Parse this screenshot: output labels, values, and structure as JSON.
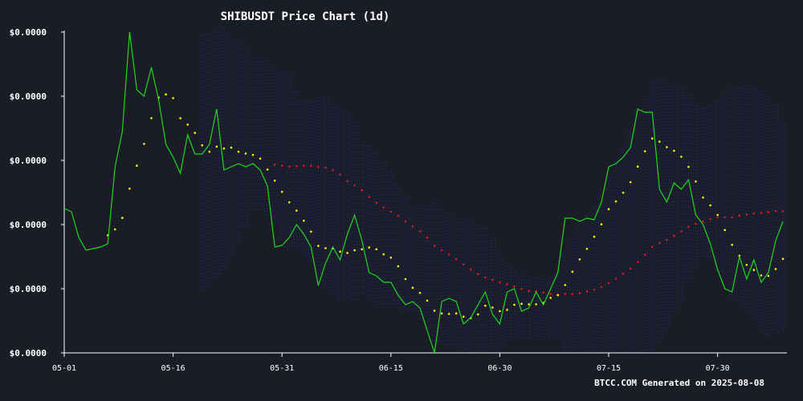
{
  "title": "SHIBUSDT Price Chart (1d)",
  "footer": "BTCC.COM Generated on 2025-08-08",
  "colors": {
    "background": "#1a1d26",
    "price_line": "#1ed81e",
    "fast_ma": "#ffff00",
    "slow_ma": "#e01818",
    "bollinger_band": "#2a2f8a",
    "axis": "#ffffff"
  },
  "chart_data": {
    "type": "line",
    "title": "SHIBUSDT Price Chart (1d)",
    "xlabel": "",
    "ylabel": "",
    "x_ticks": [
      "05-01",
      "05-16",
      "05-31",
      "06-15",
      "06-30",
      "07-15",
      "07-30"
    ],
    "x_tick_index": [
      0,
      15,
      30,
      45,
      60,
      75,
      90
    ],
    "y_tick_labels": [
      "$0.0000",
      "$0.0000",
      "$0.0000",
      "$0.0000",
      "$0.0000",
      "$0.0000"
    ],
    "ylim": [
      0,
      100
    ],
    "y_tick_values": [
      0,
      20,
      40,
      60,
      80,
      100
    ],
    "grid": false,
    "n_points": 100,
    "series": [
      {
        "style": "line",
        "values": [
          45,
          44,
          36,
          32,
          32.5,
          33,
          34,
          58,
          69,
          100,
          82,
          80,
          89,
          79,
          65,
          61,
          56,
          68,
          62,
          62,
          65,
          76,
          57,
          58,
          59,
          58,
          59,
          57,
          52,
          33,
          33.5,
          36,
          40,
          37,
          33,
          21,
          28,
          33,
          29,
          37,
          43,
          35,
          25,
          24,
          22,
          22,
          18,
          15,
          16,
          14,
          7,
          0,
          16,
          17,
          16,
          9,
          11,
          15,
          19,
          12,
          9,
          19,
          20,
          13,
          14,
          19,
          15,
          20,
          25,
          42,
          42,
          41,
          42,
          41.5,
          47,
          58,
          59,
          61,
          64,
          76,
          75,
          75,
          51,
          47,
          53,
          51,
          54,
          43,
          40,
          34,
          26,
          20,
          19,
          30,
          23,
          29,
          22,
          25,
          35,
          41
        ]
      },
      {
        "style": "dots",
        "values": [
          null,
          null,
          null,
          null,
          null,
          null,
          null,
          null,
          null,
          null,
          null,
          null,
          null,
          null,
          null,
          null,
          null,
          null,
          null,
          null,
          null,
          null,
          null,
          null,
          null,
          null,
          null,
          null,
          null,
          null,
          null,
          null,
          null,
          null,
          null,
          null,
          null,
          null,
          null,
          null,
          null,
          null,
          null,
          null,
          null,
          null,
          null,
          null,
          null,
          null,
          null,
          null,
          null,
          null,
          null,
          null,
          null,
          null,
          null,
          null,
          null,
          null,
          null,
          null,
          null,
          null,
          null,
          null,
          null,
          null,
          null,
          null,
          null,
          null,
          null,
          null,
          null,
          null,
          null,
          null,
          null,
          null,
          null,
          null,
          null,
          null,
          null,
          null,
          null,
          null,
          null,
          null,
          null,
          null,
          null,
          null,
          null,
          null,
          null,
          null
        ]
      }
    ]
  }
}
